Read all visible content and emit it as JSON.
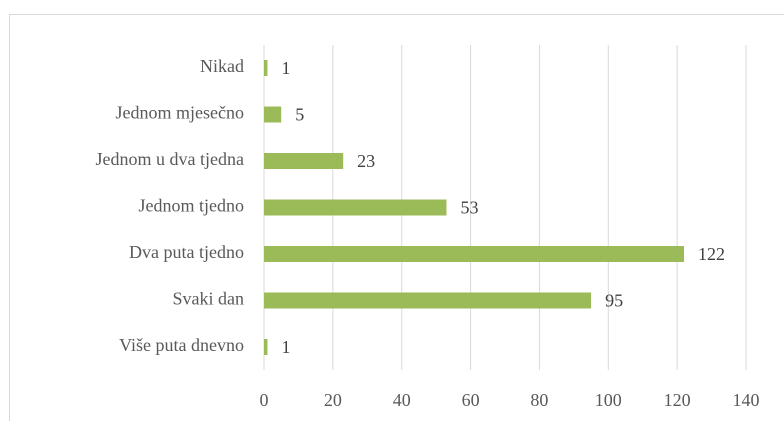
{
  "chart_data": {
    "type": "bar",
    "orientation": "horizontal",
    "categories": [
      "Nikad",
      "Jednom mjesečno",
      "Jednom u dva tjedna",
      "Jednom tjedno",
      "Dva puta tjedno",
      "Svaki dan",
      "Više puta dnevno"
    ],
    "values": [
      1,
      5,
      23,
      53,
      122,
      95,
      1
    ],
    "color": "#9bbb59",
    "xlim": [
      0,
      140
    ],
    "xticks": [
      0,
      20,
      40,
      60,
      80,
      100,
      120,
      140
    ],
    "grid": true
  }
}
